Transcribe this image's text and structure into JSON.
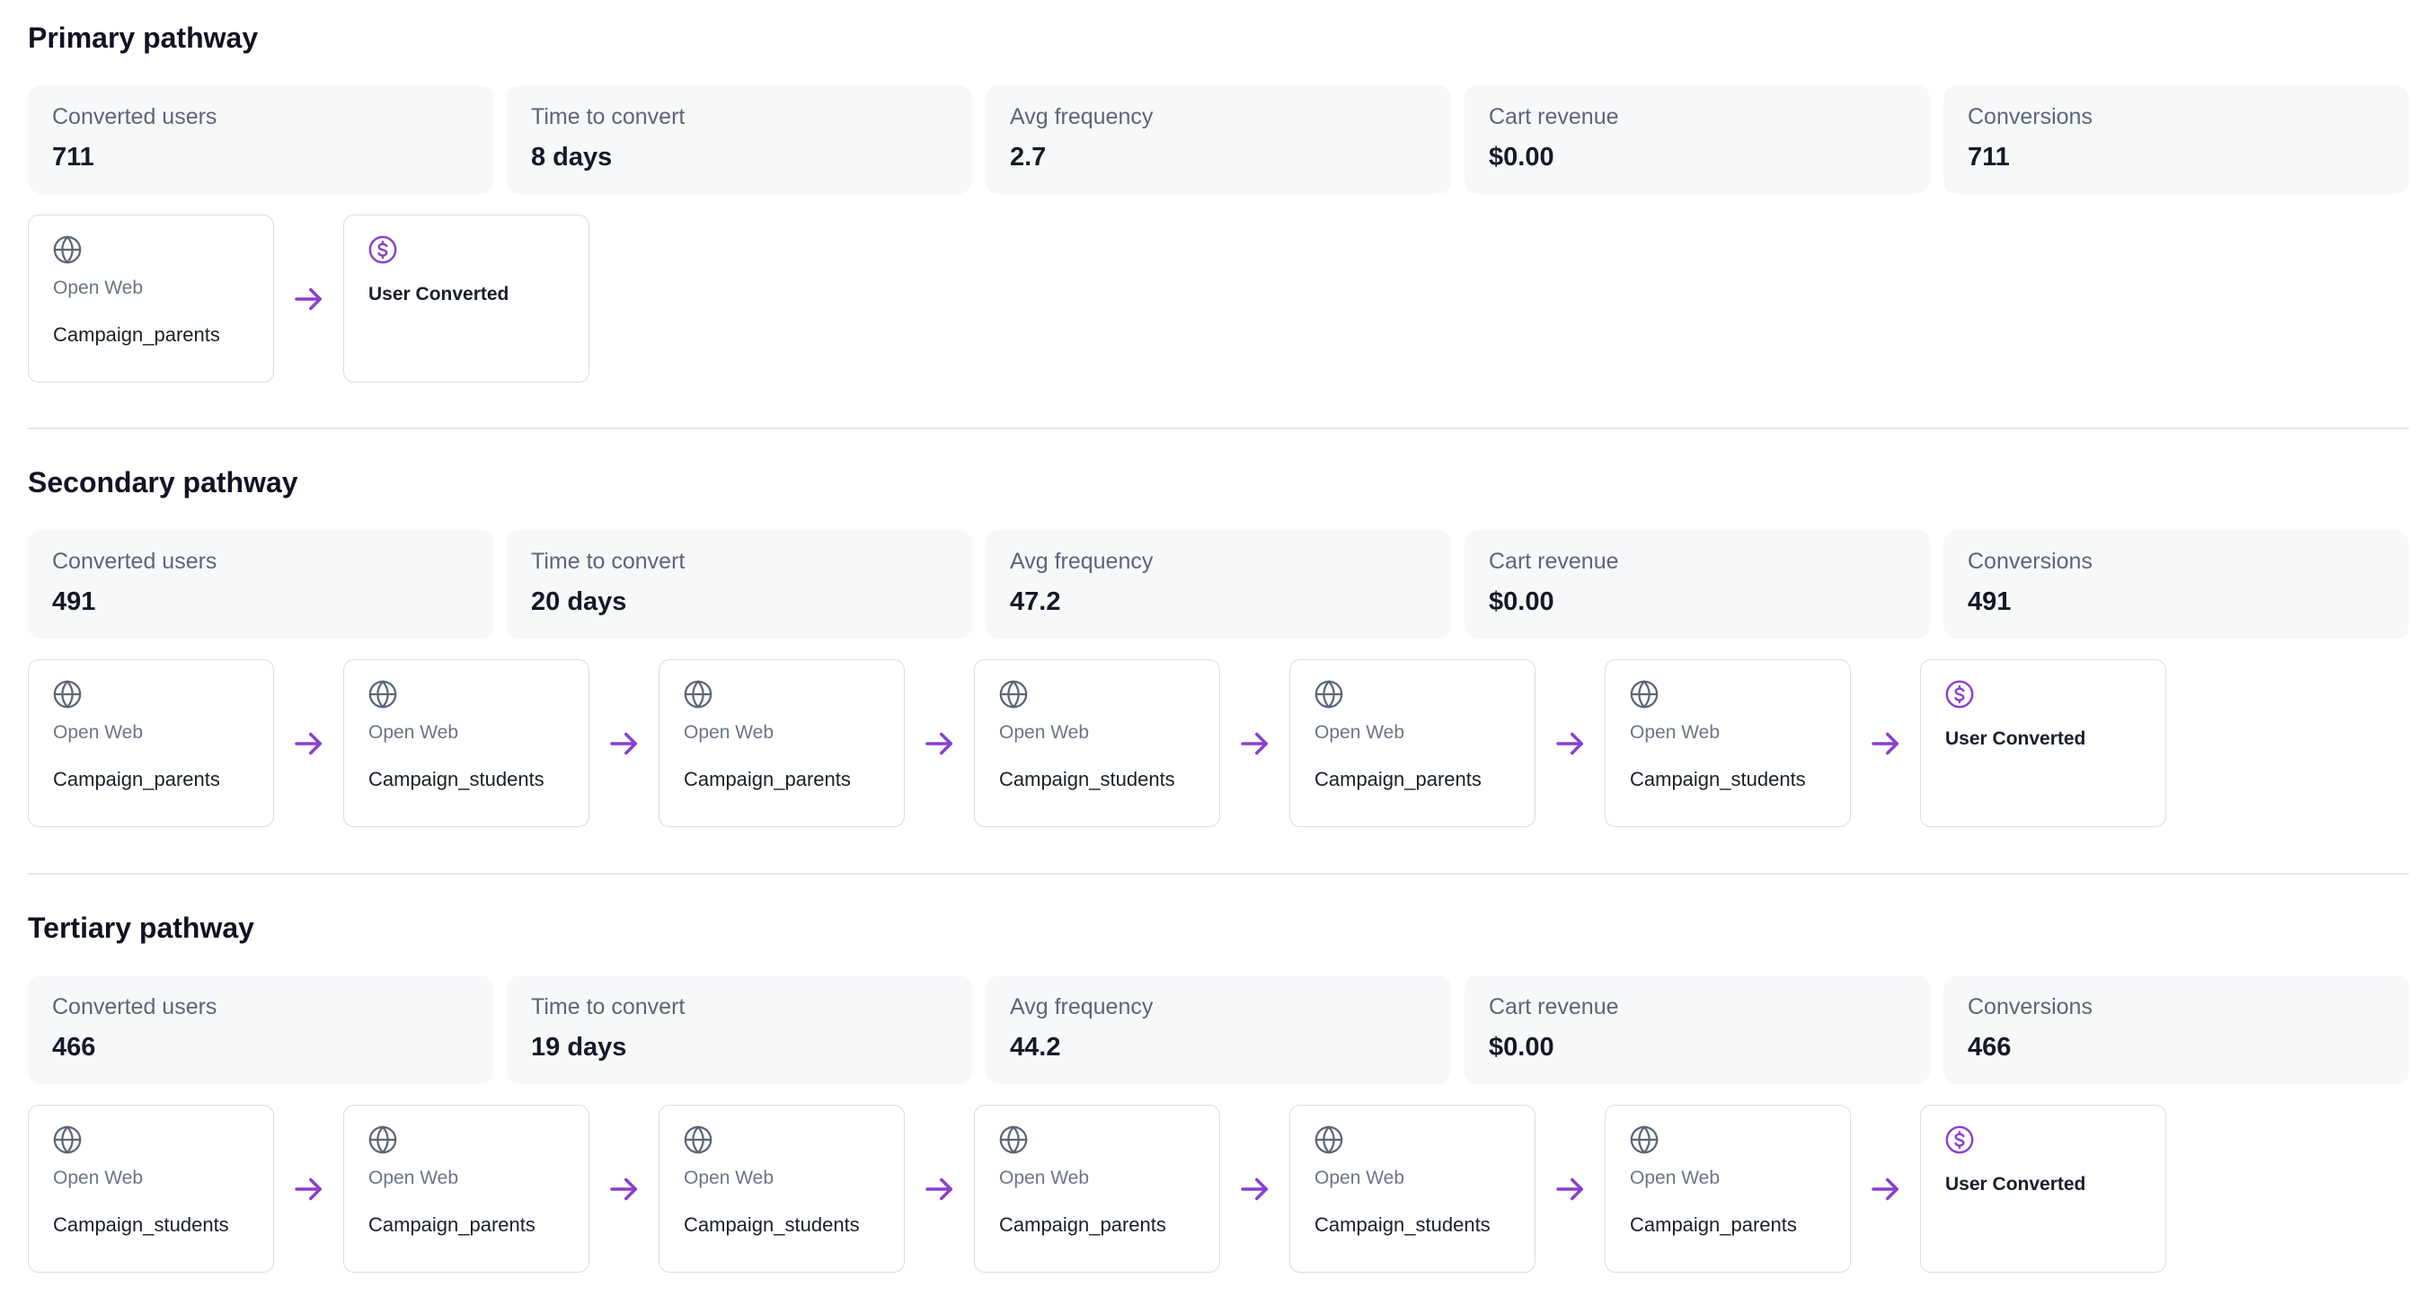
{
  "colors": {
    "accent": "#8a3fcf",
    "icon_gray": "#5b6677",
    "card_bg": "#f7f8fa"
  },
  "icons": {
    "channel": "globe-icon",
    "conversion": "dollar-circle-icon",
    "connector": "arrow-right-icon"
  },
  "pathways": [
    {
      "title": "Primary pathway",
      "stats": [
        {
          "label": "Converted users",
          "value": "711"
        },
        {
          "label": "Time to convert",
          "value": "8 days"
        },
        {
          "label": "Avg frequency",
          "value": "2.7"
        },
        {
          "label": "Cart revenue",
          "value": "$0.00"
        },
        {
          "label": "Conversions",
          "value": "711"
        }
      ],
      "steps": [
        {
          "channel": "Open Web",
          "campaign": "Campaign_parents"
        }
      ],
      "conversion_label": "User Converted"
    },
    {
      "title": "Secondary pathway",
      "stats": [
        {
          "label": "Converted users",
          "value": "491"
        },
        {
          "label": "Time to convert",
          "value": "20 days"
        },
        {
          "label": "Avg frequency",
          "value": "47.2"
        },
        {
          "label": "Cart revenue",
          "value": "$0.00"
        },
        {
          "label": "Conversions",
          "value": "491"
        }
      ],
      "steps": [
        {
          "channel": "Open Web",
          "campaign": "Campaign_parents"
        },
        {
          "channel": "Open Web",
          "campaign": "Campaign_students"
        },
        {
          "channel": "Open Web",
          "campaign": "Campaign_parents"
        },
        {
          "channel": "Open Web",
          "campaign": "Campaign_students"
        },
        {
          "channel": "Open Web",
          "campaign": "Campaign_parents"
        },
        {
          "channel": "Open Web",
          "campaign": "Campaign_students"
        }
      ],
      "conversion_label": "User Converted"
    },
    {
      "title": "Tertiary pathway",
      "stats": [
        {
          "label": "Converted users",
          "value": "466"
        },
        {
          "label": "Time to convert",
          "value": "19 days"
        },
        {
          "label": "Avg frequency",
          "value": "44.2"
        },
        {
          "label": "Cart revenue",
          "value": "$0.00"
        },
        {
          "label": "Conversions",
          "value": "466"
        }
      ],
      "steps": [
        {
          "channel": "Open Web",
          "campaign": "Campaign_students"
        },
        {
          "channel": "Open Web",
          "campaign": "Campaign_parents"
        },
        {
          "channel": "Open Web",
          "campaign": "Campaign_students"
        },
        {
          "channel": "Open Web",
          "campaign": "Campaign_parents"
        },
        {
          "channel": "Open Web",
          "campaign": "Campaign_students"
        },
        {
          "channel": "Open Web",
          "campaign": "Campaign_parents"
        }
      ],
      "conversion_label": "User Converted"
    }
  ]
}
